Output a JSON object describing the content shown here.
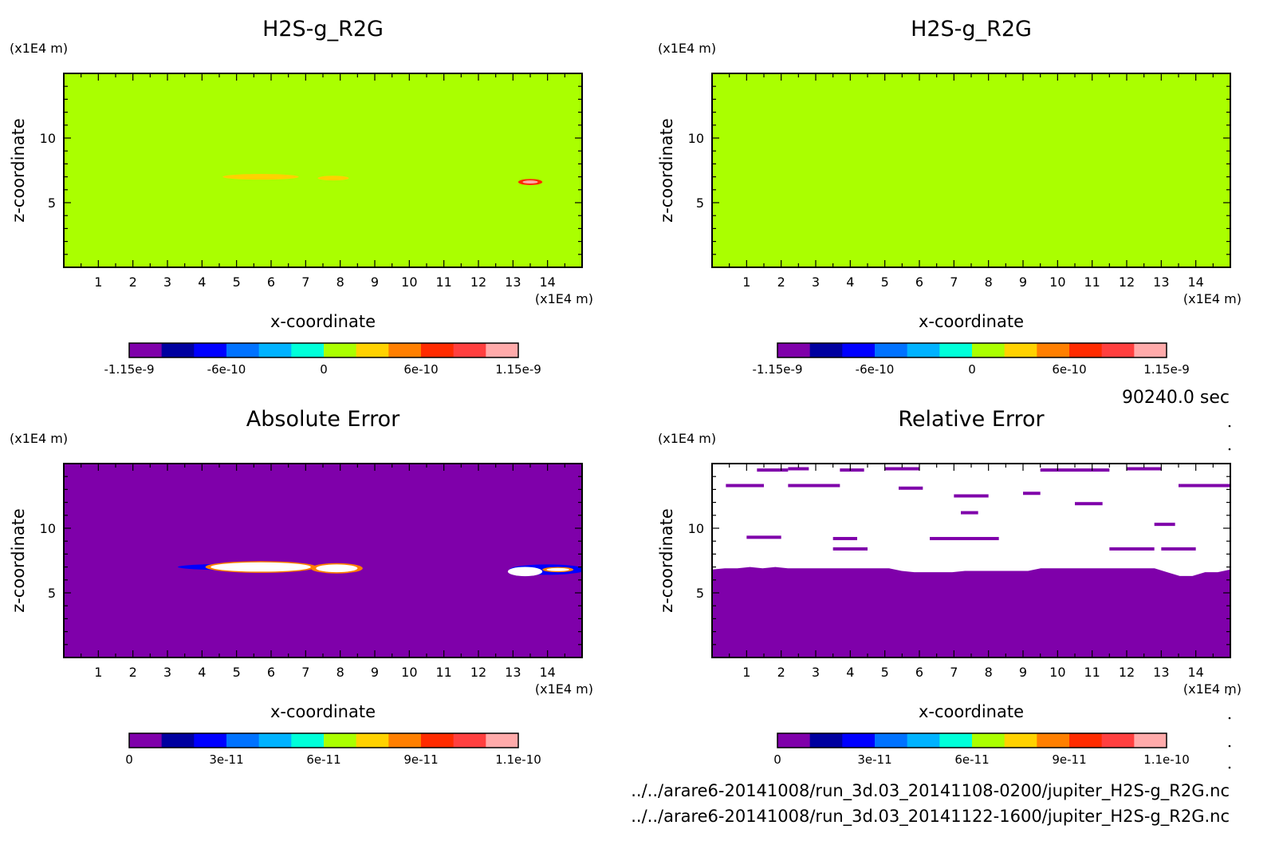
{
  "footer": {
    "time": "90240.0 sec",
    "file1": "../../arare6-20141008/run_3d.03_20141108-0200/jupiter_H2S-g_R2G.nc",
    "file2": "../../arare6-20141008/run_3d.03_20141122-1600/jupiter_H2S-g_R2G.nc"
  },
  "colors": {
    "background_green": "#aaff00",
    "background_purple": "#7f00aa",
    "colorbar": [
      "#7f00aa",
      "#00009f",
      "#0000ff",
      "#0072ff",
      "#00b2ff",
      "#00ffd9",
      "#aaff00",
      "#ffd200",
      "#ff7f00",
      "#ff2b00",
      "#ff3f3f",
      "#ffaaaa"
    ]
  },
  "chart_data": [
    {
      "type": "heatmap",
      "title": "H2S-g_R2G",
      "xlabel": "x-coordinate",
      "ylabel": "z-coordinate",
      "x_unit": "(x1E4 m)",
      "y_unit": "(x1E4 m)",
      "xlim": [
        0,
        15
      ],
      "ylim": [
        0,
        15
      ],
      "xticks": [
        "1",
        "2",
        "3",
        "4",
        "5",
        "6",
        "7",
        "8",
        "9",
        "10",
        "11",
        "12",
        "13",
        "14"
      ],
      "yticks": [
        "5",
        "10"
      ],
      "background": "#aaff00",
      "features": [
        {
          "x": 5.7,
          "z": 7.0,
          "rx": 1.1,
          "rz": 0.22,
          "color": "#ffd200"
        },
        {
          "x": 7.8,
          "z": 6.9,
          "rx": 0.45,
          "rz": 0.18,
          "color": "#ffd200"
        },
        {
          "x": 13.5,
          "z": 6.6,
          "rx": 0.35,
          "rz": 0.24,
          "color": "#ff2b00"
        },
        {
          "x": 13.5,
          "z": 6.6,
          "rx": 0.22,
          "rz": 0.12,
          "color": "#ffaaaa"
        }
      ],
      "colorbar": {
        "ticks": [
          "-1.15e-9",
          "-6e-10",
          "0",
          "6e-10",
          "1.15e-9"
        ]
      }
    },
    {
      "type": "heatmap",
      "title": "H2S-g_R2G",
      "xlabel": "x-coordinate",
      "ylabel": "z-coordinate",
      "x_unit": "(x1E4 m)",
      "y_unit": "(x1E4 m)",
      "xlim": [
        0,
        15
      ],
      "ylim": [
        0,
        15
      ],
      "xticks": [
        "1",
        "2",
        "3",
        "4",
        "5",
        "6",
        "7",
        "8",
        "9",
        "10",
        "11",
        "12",
        "13",
        "14"
      ],
      "yticks": [
        "5",
        "10"
      ],
      "background": "#aaff00",
      "features": [],
      "colorbar": {
        "ticks": [
          "-1.15e-9",
          "-6e-10",
          "0",
          "6e-10",
          "1.15e-9"
        ]
      }
    },
    {
      "type": "heatmap",
      "title": "Absolute Error",
      "xlabel": "x-coordinate",
      "ylabel": "z-coordinate",
      "x_unit": "(x1E4 m)",
      "y_unit": "(x1E4 m)",
      "xlim": [
        0,
        15
      ],
      "ylim": [
        0,
        15
      ],
      "xticks": [
        "1",
        "2",
        "3",
        "4",
        "5",
        "6",
        "7",
        "8",
        "9",
        "10",
        "11",
        "12",
        "13",
        "14"
      ],
      "yticks": [
        "5",
        "10"
      ],
      "background": "#7f00aa",
      "features": [
        {
          "x": 5.3,
          "z": 7.0,
          "rx": 2.0,
          "rz": 0.26,
          "color": "#0000ff"
        },
        {
          "x": 5.7,
          "z": 7.0,
          "rx": 1.6,
          "rz": 0.45,
          "color": "#ff7f00"
        },
        {
          "x": 5.7,
          "z": 7.0,
          "rx": 1.45,
          "rz": 0.36,
          "color": "#ffffff"
        },
        {
          "x": 7.9,
          "z": 6.9,
          "rx": 0.75,
          "rz": 0.4,
          "color": "#ff7f00"
        },
        {
          "x": 7.9,
          "z": 6.9,
          "rx": 0.6,
          "rz": 0.3,
          "color": "#ffffff"
        },
        {
          "x": 14.0,
          "z": 6.8,
          "rx": 1.1,
          "rz": 0.4,
          "color": "#0000ff"
        },
        {
          "x": 13.35,
          "z": 6.65,
          "rx": 0.5,
          "rz": 0.36,
          "color": "#ffffff"
        },
        {
          "x": 14.3,
          "z": 6.8,
          "rx": 0.45,
          "rz": 0.2,
          "color": "#ff7f00"
        },
        {
          "x": 14.3,
          "z": 6.8,
          "rx": 0.33,
          "rz": 0.12,
          "color": "#ffffff"
        }
      ],
      "colorbar": {
        "ticks": [
          "0",
          "3e-11",
          "6e-11",
          "9e-11",
          "1.1e-10"
        ]
      }
    },
    {
      "type": "heatmap",
      "title": "Relative Error",
      "xlabel": "x-coordinate",
      "ylabel": "z-coordinate",
      "x_unit": "(x1E4 m)",
      "y_unit": "(x1E4 m)",
      "xlim": [
        0,
        15
      ],
      "ylim": [
        0,
        15
      ],
      "xticks": [
        "1",
        "2",
        "3",
        "4",
        "5",
        "6",
        "7",
        "8",
        "9",
        "10",
        "11",
        "12",
        "13",
        "14"
      ],
      "yticks": [
        "5",
        "10"
      ],
      "background": "#ffffff",
      "lower_region": {
        "color": "#7f00aa",
        "boundary_z": [
          6.8,
          6.9,
          6.9,
          7.0,
          6.9,
          7.0,
          6.9,
          6.9,
          6.9,
          6.9,
          6.9,
          6.9,
          6.9,
          6.9,
          6.9,
          6.7,
          6.6,
          6.6,
          6.6,
          6.6,
          6.7,
          6.7,
          6.7,
          6.7,
          6.7,
          6.7,
          6.9,
          6.9,
          6.9,
          6.9,
          6.9,
          6.9,
          6.9,
          6.9,
          6.9,
          6.9,
          6.6,
          6.3,
          6.3,
          6.6,
          6.6,
          6.8
        ]
      },
      "streaks": [
        {
          "x0": 1.3,
          "x1": 2.2,
          "z": 14.5
        },
        {
          "x0": 2.2,
          "x1": 2.8,
          "z": 14.6
        },
        {
          "x0": 3.7,
          "x1": 4.4,
          "z": 14.5
        },
        {
          "x0": 5.0,
          "x1": 6.0,
          "z": 14.6
        },
        {
          "x0": 9.5,
          "x1": 11.5,
          "z": 14.5
        },
        {
          "x0": 12.0,
          "x1": 13.0,
          "z": 14.6
        },
        {
          "x0": 0.4,
          "x1": 1.5,
          "z": 13.3
        },
        {
          "x0": 2.2,
          "x1": 3.7,
          "z": 13.3
        },
        {
          "x0": 5.4,
          "x1": 6.1,
          "z": 13.1
        },
        {
          "x0": 13.5,
          "x1": 15.0,
          "z": 13.3
        },
        {
          "x0": 7.0,
          "x1": 8.0,
          "z": 12.5
        },
        {
          "x0": 9.0,
          "x1": 9.5,
          "z": 12.7
        },
        {
          "x0": 10.5,
          "x1": 11.3,
          "z": 11.9
        },
        {
          "x0": 7.2,
          "x1": 7.7,
          "z": 11.2
        },
        {
          "x0": 1.0,
          "x1": 2.0,
          "z": 9.3
        },
        {
          "x0": 3.5,
          "x1": 4.2,
          "z": 9.2
        },
        {
          "x0": 6.3,
          "x1": 8.3,
          "z": 9.2
        },
        {
          "x0": 3.5,
          "x1": 4.5,
          "z": 8.4
        },
        {
          "x0": 11.5,
          "x1": 12.8,
          "z": 8.4
        },
        {
          "x0": 13.0,
          "x1": 14.0,
          "z": 8.4
        },
        {
          "x0": 12.8,
          "x1": 13.4,
          "z": 10.3
        }
      ],
      "colorbar": {
        "ticks": [
          "0",
          "3e-11",
          "6e-11",
          "9e-11",
          "1.1e-10"
        ]
      }
    }
  ]
}
